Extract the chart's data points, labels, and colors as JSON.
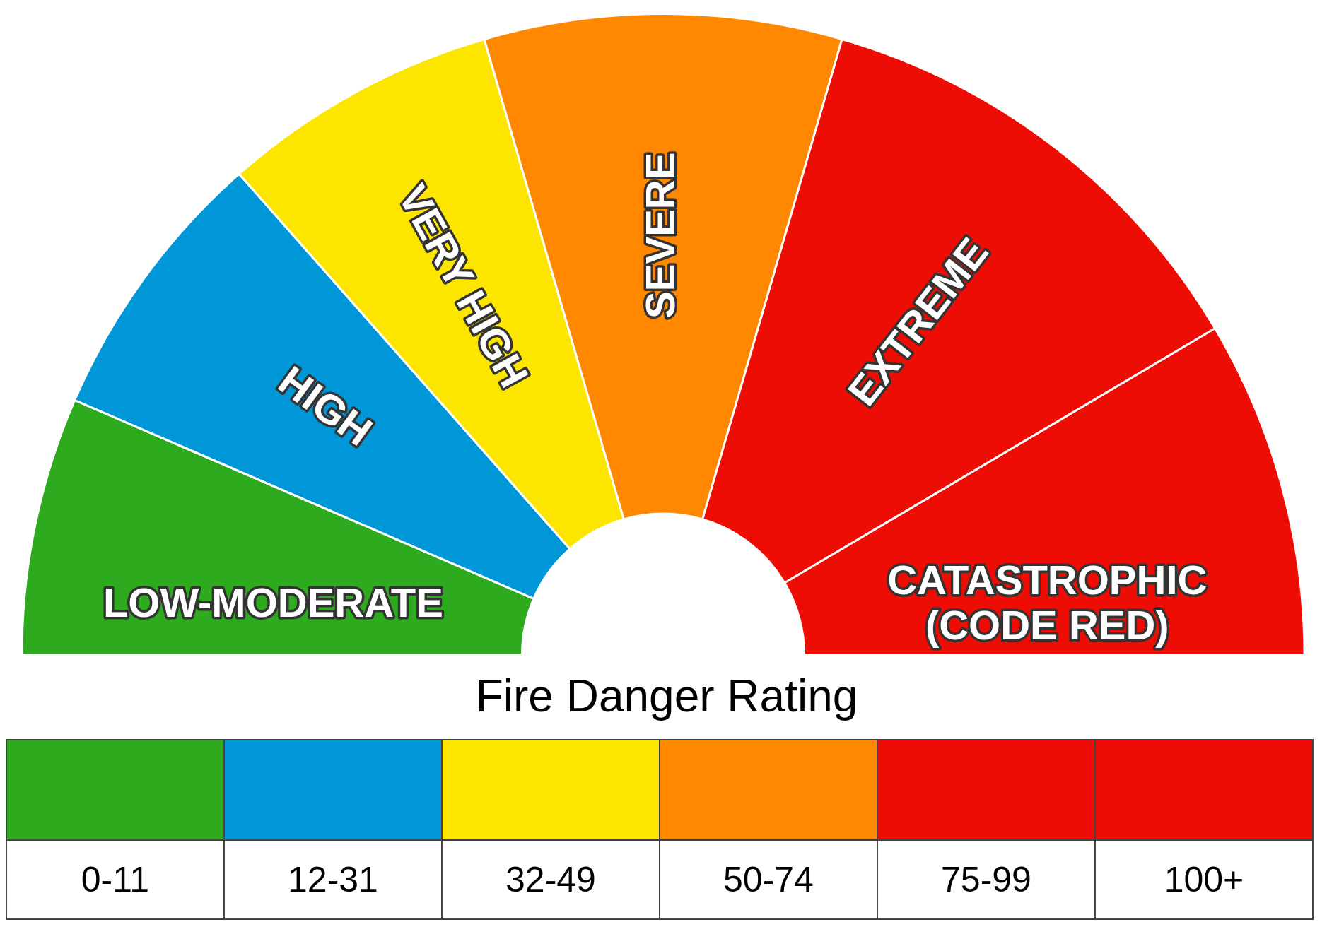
{
  "chart_data": {
    "type": "donut",
    "title": "Fire Danger Rating",
    "categories": [
      "LOW-MODERATE",
      "HIGH",
      "VERY HIGH",
      "SEVERE",
      "EXTREME",
      "CATASTROPHIC\n(CODE RED)"
    ],
    "values": [
      13,
      14,
      14,
      18,
      24,
      17
    ],
    "colors": [
      "#2eaa1f",
      "#0097d8",
      "#fce600",
      "#ff8800",
      "#ee0d04",
      "#ee0d04"
    ],
    "legend": false,
    "annotations": [
      "0-11",
      "12-31",
      "32-49",
      "50-74",
      "75-99",
      "100+"
    ]
  }
}
